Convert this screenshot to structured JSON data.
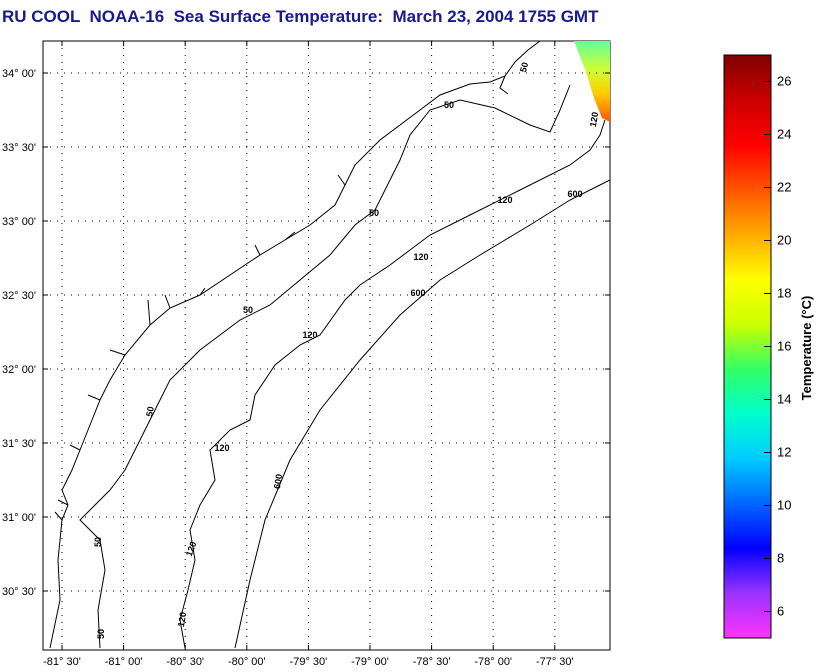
{
  "header": {
    "title": "RU COOL  NOAA-16  Sea Surface Temperature:  March 23, 2004 1755 GMT"
  },
  "map": {
    "lat_ticks": [
      {
        "value": 34.0,
        "label": "34° 00'"
      },
      {
        "value": 33.5,
        "label": "33° 30'"
      },
      {
        "value": 33.0,
        "label": "33° 00'"
      },
      {
        "value": 32.5,
        "label": "32° 30'"
      },
      {
        "value": 32.0,
        "label": "32° 00'"
      },
      {
        "value": 31.5,
        "label": "31° 30'"
      },
      {
        "value": 31.0,
        "label": "31° 00'"
      },
      {
        "value": 30.5,
        "label": "30° 30'"
      }
    ],
    "lon_ticks": [
      {
        "value": -81.5,
        "label": "-81° 30'"
      },
      {
        "value": -81.0,
        "label": "-81° 00'"
      },
      {
        "value": -80.5,
        "label": "-80° 30'"
      },
      {
        "value": -80.0,
        "label": "-80° 00'"
      },
      {
        "value": -79.5,
        "label": "-79° 30'"
      },
      {
        "value": -79.0,
        "label": "-79° 00'"
      },
      {
        "value": -78.5,
        "label": "-78° 30'"
      },
      {
        "value": -78.0,
        "label": "-78° 00'"
      },
      {
        "value": -77.5,
        "label": "-77° 30'"
      }
    ],
    "contour_labels": [
      "50",
      "50",
      "50",
      "50",
      "50",
      "50",
      "120",
      "120",
      "120",
      "120",
      "120",
      "120",
      "600",
      "600",
      "600"
    ]
  },
  "colorbar": {
    "title": "Temperature (°C)",
    "range": [
      5,
      27
    ],
    "ticks": [
      {
        "value": 26,
        "label": "26"
      },
      {
        "value": 24,
        "label": "24"
      },
      {
        "value": 22,
        "label": "22"
      },
      {
        "value": 20,
        "label": "20"
      },
      {
        "value": 18,
        "label": "18"
      },
      {
        "value": 16,
        "label": "16"
      },
      {
        "value": 14,
        "label": "14"
      },
      {
        "value": 12,
        "label": "12"
      },
      {
        "value": 10,
        "label": "10"
      },
      {
        "value": 8,
        "label": "8"
      },
      {
        "value": 6,
        "label": "6"
      }
    ],
    "colors": [
      "#ff33ff",
      "#9933ff",
      "#0000ff",
      "#0066ff",
      "#00ccff",
      "#00ffcc",
      "#33ff66",
      "#ccff00",
      "#ffff00",
      "#ffaa00",
      "#ff5500",
      "#ff0000",
      "#cc0000",
      "#800000"
    ]
  },
  "colors": {
    "title": "#1a1a8c",
    "sst_patch_top": "#66ff66",
    "sst_patch_bottom": "#ff6600"
  }
}
